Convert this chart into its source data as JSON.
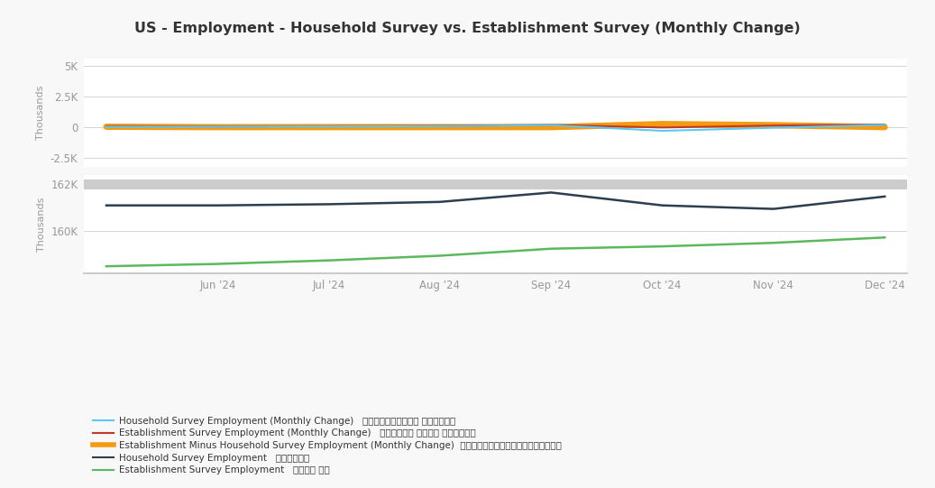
{
  "title": "US - Employment - Household Survey vs. Establishment Survey (Monthly Change)",
  "dates_x": [
    0,
    1,
    2,
    3,
    4,
    5,
    6,
    7
  ],
  "x_tick_pos": [
    1,
    2,
    3,
    4,
    5,
    6,
    7
  ],
  "x_tick_labels": [
    "Jun '24",
    "Jul '24",
    "Aug '24",
    "Sep '24",
    "Oct '24",
    "Nov '24",
    "Dec '24"
  ],
  "household_monthly_change": [
    50,
    60,
    80,
    100,
    180,
    -280,
    -30,
    200
  ],
  "establishment_monthly_change": [
    100,
    80,
    100,
    120,
    200,
    -10,
    150,
    220
  ],
  "diff_monthly_change": [
    50,
    20,
    20,
    20,
    20,
    270,
    180,
    20
  ],
  "household_level": [
    161100,
    161100,
    161150,
    161250,
    161650,
    161100,
    160950,
    161480
  ],
  "establishment_level": [
    158500,
    158600,
    158750,
    158950,
    159250,
    159350,
    159500,
    159730
  ],
  "colors": {
    "household_monthly": "#5bc8f5",
    "establishment_monthly": "#c0392b",
    "diff_monthly": "#f39c12",
    "household_level": "#2c3e50",
    "establishment_level": "#5cb85c",
    "grid": "#d5d5d5",
    "separator": "#cccccc",
    "background": "#f8f8f8",
    "panel_bg": "#ffffff",
    "axis_label": "#999999",
    "tick_label": "#999999",
    "title": "#333333"
  },
  "upper_ylim": [
    -3200,
    5600
  ],
  "lower_ylim": [
    158200,
    162400
  ],
  "upper_yticks": [
    -2500,
    0,
    2500,
    5000
  ],
  "upper_ytick_labels": [
    "-2.5K",
    "0",
    "2.5K",
    "5K"
  ],
  "lower_yticks": [
    160000,
    162000
  ],
  "lower_ytick_labels": [
    "160K",
    "162K"
  ],
  "legend": [
    {
      "label": "Household Survey Employment (Monthly Change)   住户统计调查就业人数 （按月变动）",
      "color": "#5bc8f5",
      "lw": 1.5
    },
    {
      "label": "Establishment Survey Employment (Monthly Change)   机构统计调查 就业人数 （按月变动）",
      "color": "#c0392b",
      "lw": 1.5
    },
    {
      "label": "Establishment Minus Household Survey Employment (Monthly Change)  机构减去住户调查就业人数（按月变化）",
      "color": "#f39c12",
      "lw": 4
    },
    {
      "label": "Household Survey Employment   住户调查就业",
      "color": "#2c3e50",
      "lw": 1.5
    },
    {
      "label": "Establishment Survey Employment   编制调查 就业",
      "color": "#5cb85c",
      "lw": 1.5
    }
  ]
}
